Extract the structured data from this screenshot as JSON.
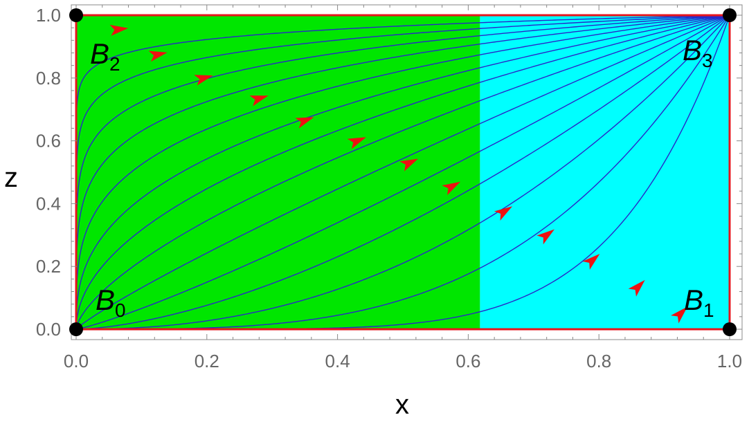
{
  "chart_data": {
    "type": "streamplot",
    "xlabel": "x",
    "ylabel": "z",
    "xlim": [
      0,
      1
    ],
    "ylim": [
      0,
      1
    ],
    "x_ticks": [
      "0.0",
      "0.2",
      "0.4",
      "0.6",
      "0.8",
      "1.0"
    ],
    "y_ticks": [
      "0.0",
      "0.2",
      "0.4",
      "0.6",
      "0.8",
      "1.0"
    ],
    "x_tick_values": [
      0,
      0.2,
      0.4,
      0.6,
      0.8,
      1.0
    ],
    "y_tick_values": [
      0,
      0.2,
      0.4,
      0.6,
      0.8,
      1.0
    ],
    "regions": [
      {
        "x_range": [
          0,
          0.618
        ],
        "color": "#00e600"
      },
      {
        "x_range": [
          0.618,
          1
        ],
        "color": "#00ffff"
      }
    ],
    "boundary_color": "#e8141c",
    "stream_color": "#2828c8",
    "arrow_color": "#ee1111",
    "streamline_exponents": [
      0.05,
      0.09,
      0.14,
      0.2,
      0.28,
      0.38,
      0.5,
      0.66,
      0.88,
      1.18,
      1.6,
      2.25,
      3.4,
      6.0
    ],
    "arrow_positions": [
      [
        0.065,
        0.955
      ],
      [
        0.125,
        0.875
      ],
      [
        0.195,
        0.8
      ],
      [
        0.28,
        0.735
      ],
      [
        0.35,
        0.665
      ],
      [
        0.43,
        0.6
      ],
      [
        0.51,
        0.53
      ],
      [
        0.575,
        0.455
      ],
      [
        0.655,
        0.375
      ],
      [
        0.72,
        0.3
      ],
      [
        0.79,
        0.22
      ],
      [
        0.86,
        0.135
      ],
      [
        0.925,
        0.05
      ]
    ],
    "fixed_points": [
      {
        "name": "B",
        "sub": "0",
        "x": 0,
        "z": 0
      },
      {
        "name": "B",
        "sub": "1",
        "x": 1,
        "z": 0
      },
      {
        "name": "B",
        "sub": "2",
        "x": 0,
        "z": 1
      },
      {
        "name": "B",
        "sub": "3",
        "x": 1,
        "z": 1
      }
    ]
  }
}
